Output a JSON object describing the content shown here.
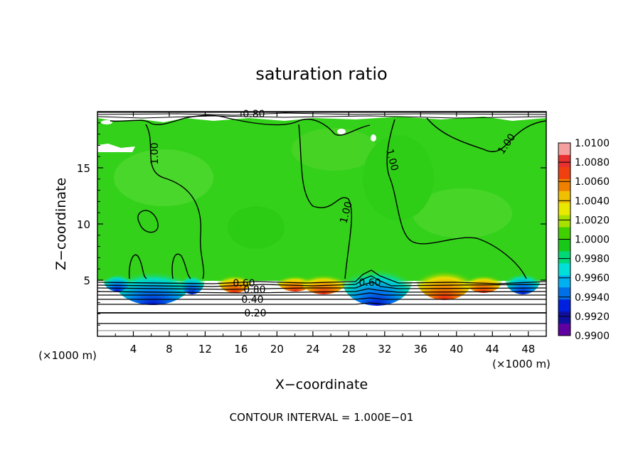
{
  "chart_data": {
    "type": "heatmap",
    "title": "saturation ratio",
    "xlabel": "X−coordinate",
    "ylabel": "Z−coordinate",
    "x_unit_label": "(×1000 m)",
    "z_unit_label": "(×1000 m)",
    "xlim": [
      0,
      50
    ],
    "ylim": [
      0,
      20
    ],
    "x_ticks": [
      4,
      8,
      12,
      16,
      20,
      24,
      28,
      32,
      36,
      40,
      44,
      48
    ],
    "x_tick_labels": [
      "4",
      "8",
      "12",
      "16",
      "20",
      "24",
      "28",
      "32",
      "36",
      "40",
      "44",
      "48"
    ],
    "y_ticks": [
      5,
      10,
      15
    ],
    "y_tick_labels": [
      "5",
      "10",
      "15"
    ],
    "colorbar": {
      "range": [
        0.99,
        1.01
      ],
      "labels": [
        "1.0100",
        "1.0080",
        "1.0060",
        "1.0040",
        "1.0020",
        "1.0000",
        "0.9980",
        "0.9960",
        "0.9940",
        "0.9920",
        "0.9900"
      ],
      "colors": [
        "#f4a0a0",
        "#e83030",
        "#f04010",
        "#f08000",
        "#f0c000",
        "#e8e800",
        "#a8e000",
        "#40d000",
        "#18c818",
        "#00d878",
        "#00e0d8",
        "#00b0f0",
        "#0070e8",
        "#0020e0",
        "#1010a0",
        "#6000a0"
      ]
    },
    "contour_interval_text": "CONTOUR INTERVAL = 1.000E−01",
    "contour_labels": [
      "1.00",
      "1.00",
      "1.00",
      "1.00",
      "0.80",
      "0.60",
      "0.40",
      "0.20",
      "0.80",
      "0.60"
    ],
    "layers": {
      "field_bottom_z": 5,
      "field_top_z": 20
    },
    "notes_colors": {
      "field": "#33d11a",
      "frame": "#000000"
    }
  }
}
